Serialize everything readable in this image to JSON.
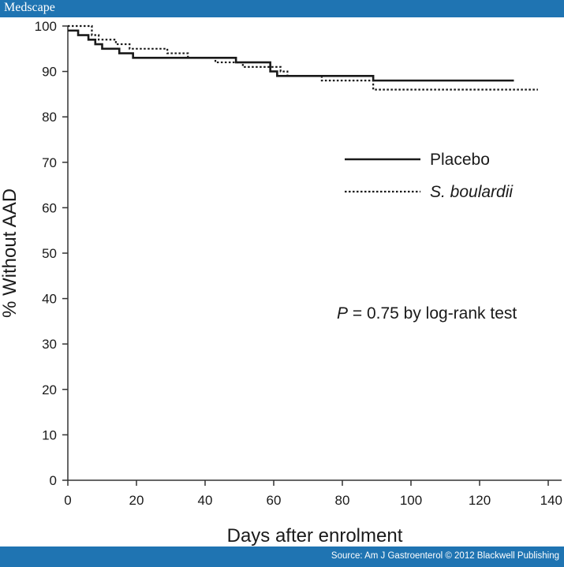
{
  "header": {
    "brand": "Medscape"
  },
  "footer": {
    "source": "Source: Am J Gastroenterol © 2012 Blackwell Publishing"
  },
  "chart_data": {
    "type": "line",
    "xlabel": "Days after enrolment",
    "ylabel": "% Without AAD",
    "xlim": [
      0,
      140
    ],
    "ylim": [
      0,
      100
    ],
    "xticks": [
      0,
      20,
      40,
      60,
      80,
      100,
      120,
      140
    ],
    "yticks": [
      0,
      10,
      20,
      30,
      40,
      50,
      60,
      70,
      80,
      90,
      100
    ],
    "grid": false,
    "legend_position": "right",
    "annotation": {
      "italic": "P",
      "text": " = 0.75 by log-rank test"
    },
    "series": [
      {
        "name": "Placebo",
        "style": "solid",
        "color": "#1a1a1a",
        "step": true,
        "points": [
          [
            0,
            99
          ],
          [
            3,
            98
          ],
          [
            6,
            97
          ],
          [
            8,
            96
          ],
          [
            10,
            95
          ],
          [
            15,
            94
          ],
          [
            19,
            93
          ],
          [
            49,
            92
          ],
          [
            59,
            90
          ],
          [
            61,
            89
          ],
          [
            89,
            88
          ],
          [
            130,
            88
          ]
        ]
      },
      {
        "name": "S. boulardii",
        "style": "dotted",
        "color": "#1a1a1a",
        "step": true,
        "points": [
          [
            0,
            100
          ],
          [
            7,
            98
          ],
          [
            9,
            97
          ],
          [
            14,
            96
          ],
          [
            18,
            95
          ],
          [
            29,
            94
          ],
          [
            35,
            93
          ],
          [
            43,
            92
          ],
          [
            51,
            91
          ],
          [
            60,
            91
          ],
          [
            62,
            90
          ],
          [
            64,
            89
          ],
          [
            74,
            88
          ],
          [
            89,
            86
          ],
          [
            137,
            86
          ]
        ]
      }
    ]
  }
}
